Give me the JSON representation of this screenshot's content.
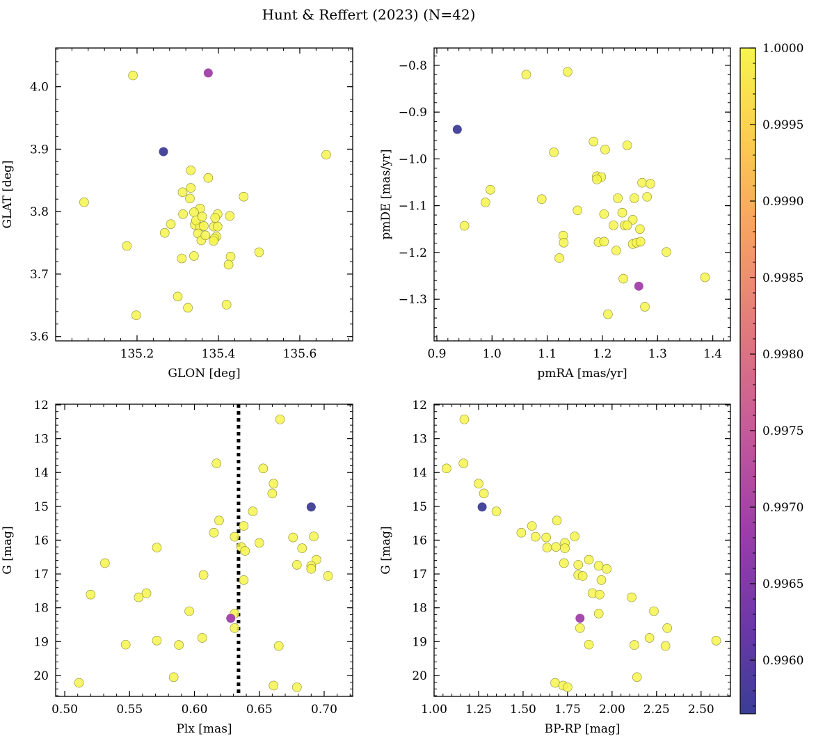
{
  "figure": {
    "title": "Hunt & Reffert (2023) (N=42)"
  },
  "colorbar": {
    "min": 0.99565,
    "max": 1.0,
    "ticks": [
      0.996,
      0.9965,
      0.997,
      0.9975,
      0.998,
      0.9985,
      0.999,
      0.9995,
      1.0
    ],
    "tick_labels": [
      "0.9960",
      "0.9965",
      "0.9970",
      "0.9975",
      "0.9980",
      "0.9985",
      "0.9990",
      "0.9995",
      "1.0000"
    ]
  },
  "chart_data": [
    {
      "type": "scatter",
      "title": "",
      "xlabel": "GLON [deg]",
      "ylabel": "GLAT [deg]",
      "xlim": [
        135.0,
        135.73
      ],
      "ylim": [
        3.593,
        4.062
      ],
      "invert_y": false,
      "xticks": [
        135.2,
        135.4,
        135.6
      ],
      "xtick_labels": [
        "135.2",
        "135.4",
        "135.6"
      ],
      "yticks": [
        3.6,
        3.7,
        3.8,
        3.9,
        4.0
      ],
      "ytick_labels": [
        "3.6",
        "3.7",
        "3.8",
        "3.9",
        "4.0"
      ],
      "points": [
        {
          "x": 135.19,
          "y": 4.018,
          "c": 1.0
        },
        {
          "x": 135.375,
          "y": 4.022,
          "c": 0.9969
        },
        {
          "x": 135.265,
          "y": 3.896,
          "c": 0.9957
        },
        {
          "x": 135.665,
          "y": 3.891,
          "c": 1.0
        },
        {
          "x": 135.07,
          "y": 3.815,
          "c": 1.0
        },
        {
          "x": 135.332,
          "y": 3.866,
          "c": 1.0
        },
        {
          "x": 135.375,
          "y": 3.854,
          "c": 1.0
        },
        {
          "x": 135.332,
          "y": 3.838,
          "c": 1.0
        },
        {
          "x": 135.312,
          "y": 3.831,
          "c": 1.0
        },
        {
          "x": 135.462,
          "y": 3.824,
          "c": 1.0
        },
        {
          "x": 135.355,
          "y": 3.805,
          "c": 1.0
        },
        {
          "x": 135.34,
          "y": 3.799,
          "c": 1.0
        },
        {
          "x": 135.313,
          "y": 3.796,
          "c": 1.0
        },
        {
          "x": 135.398,
          "y": 3.796,
          "c": 1.0
        },
        {
          "x": 135.428,
          "y": 3.793,
          "c": 1.0
        },
        {
          "x": 135.392,
          "y": 3.79,
          "c": 1.0
        },
        {
          "x": 135.33,
          "y": 3.821,
          "c": 1.0
        },
        {
          "x": 135.283,
          "y": 3.78,
          "c": 1.0
        },
        {
          "x": 135.342,
          "y": 3.779,
          "c": 1.0
        },
        {
          "x": 135.355,
          "y": 3.776,
          "c": 1.0
        },
        {
          "x": 135.364,
          "y": 3.777,
          "c": 1.0
        },
        {
          "x": 135.389,
          "y": 3.776,
          "c": 1.0
        },
        {
          "x": 135.398,
          "y": 3.776,
          "c": 1.0
        },
        {
          "x": 135.268,
          "y": 3.766,
          "c": 1.0
        },
        {
          "x": 135.35,
          "y": 3.765,
          "c": 1.0
        },
        {
          "x": 135.395,
          "y": 3.76,
          "c": 1.0
        },
        {
          "x": 135.39,
          "y": 3.757,
          "c": 1.0
        },
        {
          "x": 135.388,
          "y": 3.753,
          "c": 1.0
        },
        {
          "x": 135.358,
          "y": 3.754,
          "c": 1.0
        },
        {
          "x": 135.175,
          "y": 3.745,
          "c": 1.0
        },
        {
          "x": 135.5,
          "y": 3.735,
          "c": 1.0
        },
        {
          "x": 135.34,
          "y": 3.729,
          "c": 1.0
        },
        {
          "x": 135.43,
          "y": 3.728,
          "c": 1.0
        },
        {
          "x": 135.31,
          "y": 3.725,
          "c": 1.0
        },
        {
          "x": 135.425,
          "y": 3.715,
          "c": 1.0
        },
        {
          "x": 135.3,
          "y": 3.664,
          "c": 1.0
        },
        {
          "x": 135.42,
          "y": 3.651,
          "c": 1.0
        },
        {
          "x": 135.325,
          "y": 3.646,
          "c": 1.0
        },
        {
          "x": 135.198,
          "y": 3.634,
          "c": 1.0
        },
        {
          "x": 135.345,
          "y": 3.786,
          "c": 1.0
        },
        {
          "x": 135.368,
          "y": 3.762,
          "c": 1.0
        },
        {
          "x": 135.36,
          "y": 3.792,
          "c": 1.0
        }
      ]
    },
    {
      "type": "scatter",
      "title": "",
      "xlabel": "pmRA [mas/yr]",
      "ylabel": "pmDE [mas/yr]",
      "xlim": [
        0.895,
        1.432
      ],
      "ylim": [
        -1.389,
        -0.763
      ],
      "invert_y": false,
      "xticks": [
        0.9,
        1.0,
        1.1,
        1.2,
        1.3,
        1.4
      ],
      "xtick_labels": [
        "0.9",
        "1.0",
        "1.1",
        "1.2",
        "1.3",
        "1.4"
      ],
      "yticks": [
        -1.3,
        -1.2,
        -1.1,
        -1.0,
        -0.9,
        -0.8
      ],
      "ytick_labels": [
        "−1.3",
        "−1.2",
        "−1.1",
        "−1.0",
        "−0.9",
        "−0.8"
      ],
      "points": [
        {
          "x": 1.062,
          "y": -0.82,
          "c": 1.0
        },
        {
          "x": 1.137,
          "y": -0.814,
          "c": 1.0
        },
        {
          "x": 0.937,
          "y": -0.937,
          "c": 0.9957
        },
        {
          "x": 1.112,
          "y": -0.986,
          "c": 1.0
        },
        {
          "x": 1.184,
          "y": -0.963,
          "c": 1.0
        },
        {
          "x": 1.205,
          "y": -0.98,
          "c": 1.0
        },
        {
          "x": 1.245,
          "y": -0.971,
          "c": 1.0
        },
        {
          "x": 1.19,
          "y": -1.037,
          "c": 1.0
        },
        {
          "x": 1.198,
          "y": -1.039,
          "c": 1.0
        },
        {
          "x": 1.19,
          "y": -1.044,
          "c": 1.0
        },
        {
          "x": 1.272,
          "y": -1.051,
          "c": 1.0
        },
        {
          "x": 1.287,
          "y": -1.053,
          "c": 1.0
        },
        {
          "x": 0.997,
          "y": -1.066,
          "c": 1.0
        },
        {
          "x": 1.228,
          "y": -1.084,
          "c": 1.0
        },
        {
          "x": 1.258,
          "y": -1.084,
          "c": 1.0
        },
        {
          "x": 1.281,
          "y": -1.081,
          "c": 1.0
        },
        {
          "x": 1.09,
          "y": -1.086,
          "c": 1.0
        },
        {
          "x": 0.988,
          "y": -1.093,
          "c": 1.0
        },
        {
          "x": 1.155,
          "y": -1.11,
          "c": 1.0
        },
        {
          "x": 1.203,
          "y": -1.118,
          "c": 1.0
        },
        {
          "x": 1.236,
          "y": -1.115,
          "c": 1.0
        },
        {
          "x": 1.255,
          "y": -1.13,
          "c": 1.0
        },
        {
          "x": 0.95,
          "y": -1.143,
          "c": 1.0
        },
        {
          "x": 1.22,
          "y": -1.142,
          "c": 1.0
        },
        {
          "x": 1.24,
          "y": -1.142,
          "c": 1.0
        },
        {
          "x": 1.245,
          "y": -1.142,
          "c": 1.0
        },
        {
          "x": 1.268,
          "y": -1.15,
          "c": 1.0
        },
        {
          "x": 1.129,
          "y": -1.164,
          "c": 1.0
        },
        {
          "x": 1.13,
          "y": -1.179,
          "c": 1.0
        },
        {
          "x": 1.193,
          "y": -1.178,
          "c": 1.0
        },
        {
          "x": 1.203,
          "y": -1.177,
          "c": 1.0
        },
        {
          "x": 1.255,
          "y": -1.182,
          "c": 1.0
        },
        {
          "x": 1.262,
          "y": -1.179,
          "c": 1.0
        },
        {
          "x": 1.269,
          "y": -1.177,
          "c": 1.0
        },
        {
          "x": 1.225,
          "y": -1.196,
          "c": 1.0
        },
        {
          "x": 1.316,
          "y": -1.199,
          "c": 1.0
        },
        {
          "x": 1.122,
          "y": -1.212,
          "c": 1.0
        },
        {
          "x": 1.386,
          "y": -1.253,
          "c": 1.0
        },
        {
          "x": 1.238,
          "y": -1.256,
          "c": 1.0
        },
        {
          "x": 1.266,
          "y": -1.272,
          "c": 0.9969
        },
        {
          "x": 1.277,
          "y": -1.316,
          "c": 1.0
        },
        {
          "x": 1.21,
          "y": -1.332,
          "c": 1.0
        }
      ]
    },
    {
      "type": "scatter",
      "title": "",
      "xlabel": "Plx [mas]",
      "ylabel": "G [mag]",
      "xlim": [
        0.493,
        0.722
      ],
      "ylim": [
        20.62,
        11.98
      ],
      "invert_y": true,
      "vline": 0.634,
      "xticks": [
        0.5,
        0.55,
        0.6,
        0.65,
        0.7
      ],
      "xtick_labels": [
        "0.50",
        "0.55",
        "0.60",
        "0.65",
        "0.70"
      ],
      "yticks": [
        12,
        13,
        14,
        15,
        16,
        17,
        18,
        19,
        20
      ],
      "ytick_labels": [
        "12",
        "13",
        "14",
        "15",
        "16",
        "17",
        "18",
        "19",
        "20"
      ],
      "points": [
        {
          "x": 0.666,
          "y": 12.43,
          "c": 1.0
        },
        {
          "x": 0.617,
          "y": 13.73,
          "c": 1.0
        },
        {
          "x": 0.653,
          "y": 13.88,
          "c": 1.0
        },
        {
          "x": 0.661,
          "y": 14.33,
          "c": 1.0
        },
        {
          "x": 0.66,
          "y": 14.62,
          "c": 1.0
        },
        {
          "x": 0.69,
          "y": 15.02,
          "c": 0.9957
        },
        {
          "x": 0.645,
          "y": 15.15,
          "c": 1.0
        },
        {
          "x": 0.619,
          "y": 15.42,
          "c": 1.0
        },
        {
          "x": 0.638,
          "y": 15.58,
          "c": 1.0
        },
        {
          "x": 0.615,
          "y": 15.78,
          "c": 1.0
        },
        {
          "x": 0.631,
          "y": 15.9,
          "c": 1.0
        },
        {
          "x": 0.676,
          "y": 15.92,
          "c": 1.0
        },
        {
          "x": 0.692,
          "y": 15.89,
          "c": 1.0
        },
        {
          "x": 0.65,
          "y": 16.08,
          "c": 1.0
        },
        {
          "x": 0.571,
          "y": 16.22,
          "c": 1.0
        },
        {
          "x": 0.636,
          "y": 16.2,
          "c": 1.0
        },
        {
          "x": 0.683,
          "y": 16.24,
          "c": 1.0
        },
        {
          "x": 0.694,
          "y": 16.58,
          "c": 1.0
        },
        {
          "x": 0.531,
          "y": 16.68,
          "c": 1.0
        },
        {
          "x": 0.679,
          "y": 16.73,
          "c": 1.0
        },
        {
          "x": 0.69,
          "y": 16.76,
          "c": 1.0
        },
        {
          "x": 0.69,
          "y": 16.85,
          "c": 1.0
        },
        {
          "x": 0.607,
          "y": 17.03,
          "c": 1.0
        },
        {
          "x": 0.703,
          "y": 17.06,
          "c": 1.0
        },
        {
          "x": 0.638,
          "y": 17.18,
          "c": 1.0
        },
        {
          "x": 0.563,
          "y": 17.57,
          "c": 1.0
        },
        {
          "x": 0.52,
          "y": 17.61,
          "c": 1.0
        },
        {
          "x": 0.557,
          "y": 17.69,
          "c": 1.0
        },
        {
          "x": 0.596,
          "y": 18.1,
          "c": 1.0
        },
        {
          "x": 0.631,
          "y": 18.17,
          "c": 1.0
        },
        {
          "x": 0.628,
          "y": 18.31,
          "c": 0.9969
        },
        {
          "x": 0.631,
          "y": 18.6,
          "c": 1.0
        },
        {
          "x": 0.606,
          "y": 18.89,
          "c": 1.0
        },
        {
          "x": 0.571,
          "y": 18.97,
          "c": 1.0
        },
        {
          "x": 0.547,
          "y": 19.09,
          "c": 1.0
        },
        {
          "x": 0.588,
          "y": 19.1,
          "c": 1.0
        },
        {
          "x": 0.665,
          "y": 19.13,
          "c": 1.0
        },
        {
          "x": 0.584,
          "y": 20.05,
          "c": 1.0
        },
        {
          "x": 0.511,
          "y": 20.22,
          "c": 1.0
        },
        {
          "x": 0.661,
          "y": 20.3,
          "c": 1.0
        },
        {
          "x": 0.679,
          "y": 20.35,
          "c": 1.0
        },
        {
          "x": 0.639,
          "y": 16.32,
          "c": 1.0
        }
      ]
    },
    {
      "type": "scatter",
      "title": "",
      "xlabel": "BP-RP [mag]",
      "ylabel": "G [mag]",
      "xlim": [
        1.0,
        2.665
      ],
      "ylim": [
        20.62,
        11.98
      ],
      "invert_y": true,
      "xticks": [
        1.0,
        1.25,
        1.5,
        1.75,
        2.0,
        2.25,
        2.5
      ],
      "xtick_labels": [
        "1.00",
        "1.25",
        "1.50",
        "1.75",
        "2.00",
        "2.25",
        "2.50"
      ],
      "yticks": [
        12,
        13,
        14,
        15,
        16,
        17,
        18,
        19,
        20
      ],
      "ytick_labels": [
        "12",
        "13",
        "14",
        "15",
        "16",
        "17",
        "18",
        "19",
        "20"
      ],
      "points": [
        {
          "x": 1.17,
          "y": 12.43,
          "c": 1.0
        },
        {
          "x": 1.165,
          "y": 13.73,
          "c": 1.0
        },
        {
          "x": 1.07,
          "y": 13.88,
          "c": 1.0
        },
        {
          "x": 1.25,
          "y": 14.33,
          "c": 1.0
        },
        {
          "x": 1.28,
          "y": 14.62,
          "c": 1.0
        },
        {
          "x": 1.27,
          "y": 15.02,
          "c": 0.9957
        },
        {
          "x": 1.35,
          "y": 15.15,
          "c": 1.0
        },
        {
          "x": 1.69,
          "y": 15.42,
          "c": 1.0
        },
        {
          "x": 1.55,
          "y": 15.58,
          "c": 1.0
        },
        {
          "x": 1.49,
          "y": 15.78,
          "c": 1.0
        },
        {
          "x": 1.57,
          "y": 15.9,
          "c": 1.0
        },
        {
          "x": 1.63,
          "y": 15.92,
          "c": 1.0
        },
        {
          "x": 1.79,
          "y": 15.89,
          "c": 1.0
        },
        {
          "x": 1.735,
          "y": 16.08,
          "c": 1.0
        },
        {
          "x": 1.635,
          "y": 16.22,
          "c": 1.0
        },
        {
          "x": 1.685,
          "y": 16.2,
          "c": 1.0
        },
        {
          "x": 1.735,
          "y": 16.24,
          "c": 1.0
        },
        {
          "x": 1.87,
          "y": 16.58,
          "c": 1.0
        },
        {
          "x": 1.73,
          "y": 16.68,
          "c": 1.0
        },
        {
          "x": 1.81,
          "y": 16.73,
          "c": 1.0
        },
        {
          "x": 1.925,
          "y": 16.76,
          "c": 1.0
        },
        {
          "x": 1.97,
          "y": 16.85,
          "c": 1.0
        },
        {
          "x": 1.81,
          "y": 17.03,
          "c": 1.0
        },
        {
          "x": 1.835,
          "y": 17.06,
          "c": 1.0
        },
        {
          "x": 1.94,
          "y": 17.18,
          "c": 1.0
        },
        {
          "x": 1.89,
          "y": 17.57,
          "c": 1.0
        },
        {
          "x": 1.93,
          "y": 17.61,
          "c": 1.0
        },
        {
          "x": 2.11,
          "y": 17.69,
          "c": 1.0
        },
        {
          "x": 2.235,
          "y": 18.1,
          "c": 1.0
        },
        {
          "x": 1.925,
          "y": 18.17,
          "c": 1.0
        },
        {
          "x": 1.82,
          "y": 18.31,
          "c": 0.9969
        },
        {
          "x": 1.82,
          "y": 18.6,
          "c": 1.0
        },
        {
          "x": 2.31,
          "y": 18.6,
          "c": 1.0
        },
        {
          "x": 2.21,
          "y": 18.89,
          "c": 1.0
        },
        {
          "x": 2.585,
          "y": 18.97,
          "c": 1.0
        },
        {
          "x": 1.87,
          "y": 19.09,
          "c": 1.0
        },
        {
          "x": 2.125,
          "y": 19.1,
          "c": 1.0
        },
        {
          "x": 2.3,
          "y": 19.13,
          "c": 1.0
        },
        {
          "x": 2.14,
          "y": 20.05,
          "c": 1.0
        },
        {
          "x": 1.68,
          "y": 20.22,
          "c": 1.0
        },
        {
          "x": 1.725,
          "y": 20.3,
          "c": 1.0
        },
        {
          "x": 1.75,
          "y": 20.35,
          "c": 1.0
        }
      ]
    }
  ]
}
